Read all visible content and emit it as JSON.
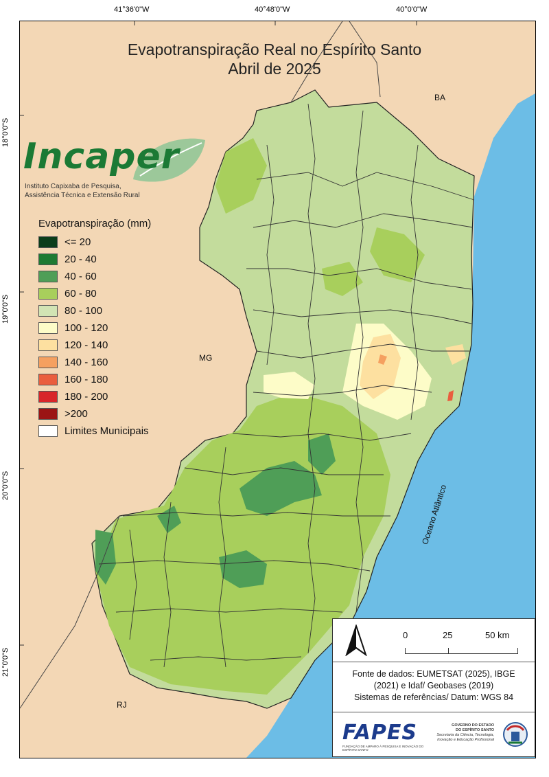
{
  "title": {
    "line1": "Evapotranspiração Real no Espírito Santo",
    "line2": "Abril de 2025"
  },
  "graticule": {
    "lon_labels": [
      "41°36'0\"W",
      "40°48'0\"W",
      "40°0'0\"W"
    ],
    "lat_labels": [
      "18°0'0\"S",
      "19°0'0\"S",
      "20°0'0\"S",
      "21°0'0\"S"
    ]
  },
  "logo": {
    "name_part1": "Inca",
    "name_part2": "per",
    "subtitle_line1": "Instituto Capixaba de Pesquisa,",
    "subtitle_line2": "Assistência Técnica e Extensão Rural",
    "color_dark": "#1b7a35",
    "color_leaf": "#9cc89a"
  },
  "legend": {
    "title": "Evapotranspiração (mm)",
    "items": [
      {
        "label": "<= 20",
        "color": "#0b3d1a"
      },
      {
        "label": "20 - 40",
        "color": "#1e7a33"
      },
      {
        "label": "40 - 60",
        "color": "#4f9e57"
      },
      {
        "label": "60 - 80",
        "color": "#a8cf5c"
      },
      {
        "label": "80 - 100",
        "color": "#d2e4b4"
      },
      {
        "label": "100 - 120",
        "color": "#fdfcc8"
      },
      {
        "label": "120 - 140",
        "color": "#fde0a0"
      },
      {
        "label": "140 - 160",
        "color": "#f5a060"
      },
      {
        "label": "160 - 180",
        "color": "#ea5e3e"
      },
      {
        "label": "180 - 200",
        "color": "#d8252a"
      },
      {
        "label": ">200",
        "color": "#9b1414"
      },
      {
        "label": "Limites Municipais",
        "color": "#ffffff"
      }
    ]
  },
  "regions": {
    "ba": "BA",
    "mg": "MG",
    "rj": "RJ",
    "ocean": "Oceano Atlântico"
  },
  "colors": {
    "land_outside": "#f3d7b5",
    "ocean": "#6cbde6",
    "boundary": "#222222"
  },
  "scale_bar": {
    "labels": [
      "0",
      "25",
      "50 km"
    ]
  },
  "source": {
    "line1": "Fonte de dados: EUMETSAT (2025), IBGE",
    "line2": "(2021) e Idaf/ Geobases (2019)",
    "line3": "Sistemas de referências/ Datum: WGS 84"
  },
  "fapes": {
    "name": "FAPES",
    "subtitle": "FUNDAÇÃO DE AMPARO À PESQUISA E INOVAÇÃO DO ESPÍRITO SANTO"
  },
  "government": {
    "line1": "GOVERNO DO ESTADO",
    "line2": "DO ESPÍRITO SANTO",
    "line3": "Secretaria da Ciência, Tecnologia,",
    "line4": "Inovação e Educação Profissional"
  }
}
